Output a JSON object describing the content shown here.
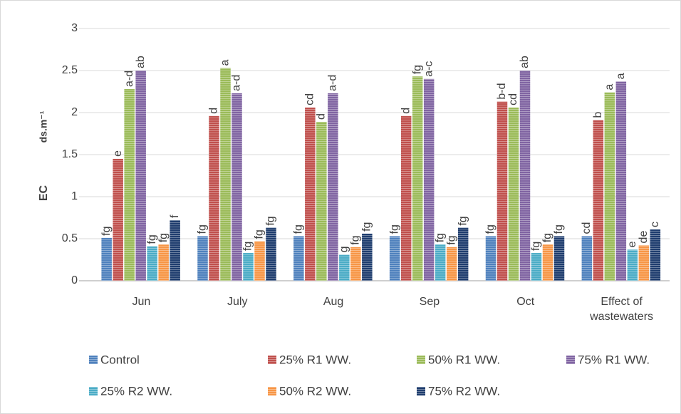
{
  "chart_data": {
    "type": "bar",
    "ylabel": "EC",
    "yunit": "ds.m⁻¹",
    "categories": [
      "Jun",
      "July",
      "Aug",
      "Sep",
      "Oct",
      "Effect of wastewaters"
    ],
    "ylim": [
      0,
      3
    ],
    "yticks": [
      0,
      0.5,
      1,
      1.5,
      2,
      2.5,
      3
    ],
    "grid": true,
    "series": [
      {
        "name": "Control",
        "color": "#4f81bd",
        "values": [
          0.51,
          0.53,
          0.53,
          0.53,
          0.53,
          0.53
        ],
        "letters": [
          "fg",
          "fg",
          "fg",
          "fg",
          "fg",
          "cd"
        ]
      },
      {
        "name": "25% R1 WW.",
        "color": "#c0504d",
        "values": [
          1.45,
          1.96,
          2.06,
          1.96,
          2.13,
          1.91
        ],
        "letters": [
          "e",
          "d",
          "cd",
          "d",
          "b-d",
          "b"
        ]
      },
      {
        "name": "50% R1 WW.",
        "color": "#9bbb59",
        "values": [
          2.28,
          2.53,
          1.89,
          2.43,
          2.06,
          2.24
        ],
        "letters": [
          "a-d",
          "a",
          "d",
          "fg",
          "cd",
          "a"
        ]
      },
      {
        "name": "75% R1 WW.",
        "color": "#8064a2",
        "values": [
          2.5,
          2.23,
          2.23,
          2.4,
          2.5,
          2.37
        ],
        "letters": [
          "ab",
          "a-d",
          "a-d",
          "a-c",
          "ab",
          "a"
        ]
      },
      {
        "name": "25% R2 WW.",
        "color": "#4bacc6",
        "values": [
          0.41,
          0.33,
          0.31,
          0.43,
          0.33,
          0.37
        ],
        "letters": [
          "fg",
          "fg",
          "g",
          "fg",
          "fg",
          "e"
        ]
      },
      {
        "name": "50% R2 WW.",
        "color": "#f79646",
        "values": [
          0.43,
          0.47,
          0.4,
          0.4,
          0.43,
          0.42
        ],
        "letters": [
          "fg",
          "fg",
          "fg",
          "fg",
          "fg",
          "de"
        ]
      },
      {
        "name": "75% R2 WW.",
        "color": "#1f3d6e",
        "values": [
          0.72,
          0.63,
          0.56,
          0.63,
          0.53,
          0.61
        ],
        "letters": [
          "f",
          "fg",
          "fg",
          "fg",
          "fg",
          "c"
        ]
      }
    ]
  }
}
